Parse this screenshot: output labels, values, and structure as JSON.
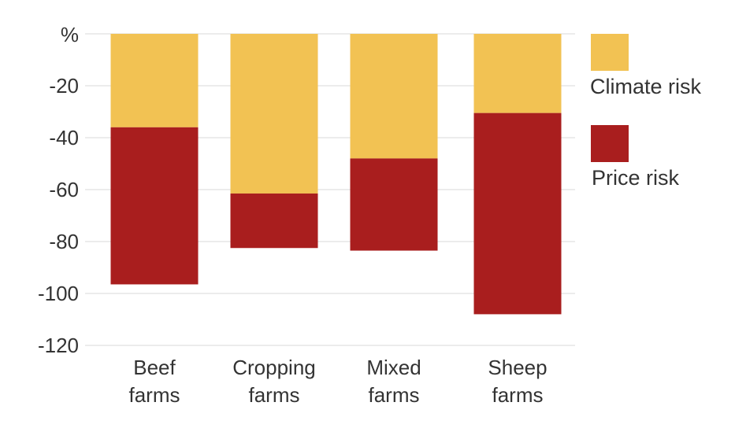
{
  "chart_data": {
    "type": "bar",
    "stacked": true,
    "ylabel": "%",
    "ylim": [
      -120,
      0
    ],
    "yticks": [
      -20,
      -40,
      -60,
      -80,
      -100,
      -120
    ],
    "grid": true,
    "legend_position": "right",
    "categories": [
      [
        "Beef",
        "farms"
      ],
      [
        "Cropping",
        "farms"
      ],
      [
        "Mixed",
        "farms"
      ],
      [
        "Sheep",
        "farms"
      ]
    ],
    "series": [
      {
        "name": "Climate risk",
        "color": "#F2C253",
        "values": [
          -36,
          -61.5,
          -48,
          -30.5
        ]
      },
      {
        "name": "Price risk",
        "color": "#A91E1E",
        "values": [
          -60.5,
          -21,
          -35.5,
          -77.5
        ]
      }
    ]
  }
}
